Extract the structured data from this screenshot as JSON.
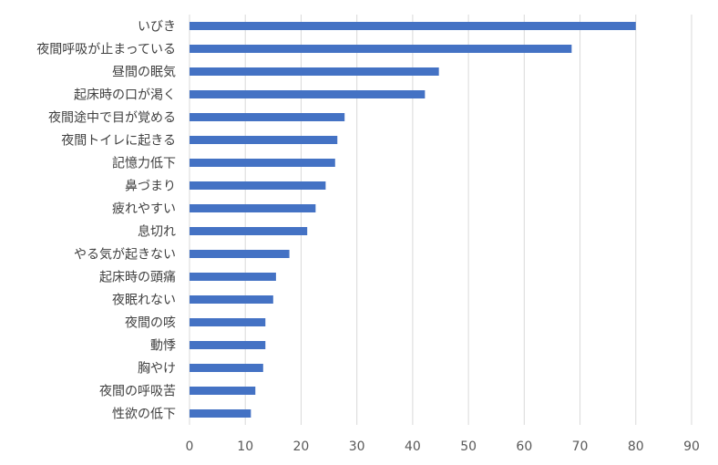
{
  "chart_data": {
    "type": "bar",
    "orientation": "horizontal",
    "categories": [
      "いびき",
      "夜間呼吸が止まっている",
      "昼間の眠気",
      "起床時の口が渇く",
      "夜間途中で目が覚める",
      "夜間トイレに起きる",
      "記憶力低下",
      "鼻づまり",
      "疲れやすい",
      "息切れ",
      "やる気が起きない",
      "起床時の頭痛",
      "夜眠れない",
      "夜間の咳",
      "動悸",
      "胸やけ",
      "夜間の呼吸苦",
      "性欲の低下"
    ],
    "values": [
      80,
      68.5,
      44.7,
      42.2,
      27.8,
      26.5,
      26.1,
      24.4,
      22.6,
      21.1,
      17.9,
      15.5,
      15.0,
      13.6,
      13.6,
      13.2,
      11.8,
      11.0
    ],
    "xlim": [
      0,
      90
    ],
    "xticks": [
      "0",
      "10",
      "20",
      "30",
      "40",
      "50",
      "60",
      "70",
      "80",
      "90"
    ],
    "title": "",
    "xlabel": "",
    "ylabel": "",
    "grid": "vertical",
    "legend": "none",
    "bar_color": "#4472C4"
  }
}
